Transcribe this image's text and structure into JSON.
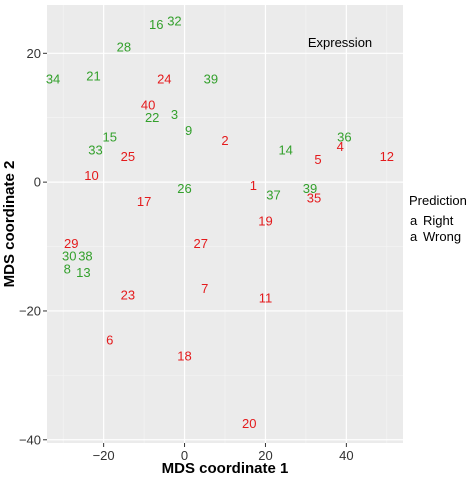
{
  "chart_data": {
    "type": "scatter",
    "title": "",
    "xlabel": "MDS coordinate 1",
    "ylabel": "MDS coordinate 2",
    "xlim": [
      -34,
      54
    ],
    "ylim": [
      -40.5,
      27.5
    ],
    "xticks": [
      -20,
      0,
      20,
      40
    ],
    "yticks": [
      -40,
      -20,
      0,
      20
    ],
    "xtick_labels": [
      "−20",
      "0",
      "20",
      "40"
    ],
    "ytick_labels": [
      "−40",
      "−20",
      "0",
      "20"
    ],
    "grid": false,
    "annotation": "Expression",
    "legend": {
      "title": "Prediction",
      "placement": "right",
      "entries": [
        {
          "key": "a",
          "label": "Right",
          "color": "#e41a1c"
        },
        {
          "key": "a",
          "label": "Wrong",
          "color": "#33a02c"
        }
      ]
    },
    "series": [
      {
        "name": "Right",
        "color": "#e41a1c",
        "points": [
          {
            "label": "24",
            "x": -5,
            "y": 16
          },
          {
            "label": "40",
            "x": -9,
            "y": 12
          },
          {
            "label": "2",
            "x": 10,
            "y": 6.5
          },
          {
            "label": "25",
            "x": -14,
            "y": 4
          },
          {
            "label": "5",
            "x": 33,
            "y": 3.5
          },
          {
            "label": "4",
            "x": 38.5,
            "y": 5.5
          },
          {
            "label": "12",
            "x": 50,
            "y": 4
          },
          {
            "label": "10",
            "x": -23,
            "y": 1
          },
          {
            "label": "1",
            "x": 17,
            "y": -0.5
          },
          {
            "label": "17",
            "x": -10,
            "y": -3
          },
          {
            "label": "35",
            "x": 32,
            "y": -2.5
          },
          {
            "label": "19",
            "x": 20,
            "y": -6
          },
          {
            "label": "29",
            "x": -28,
            "y": -9.5
          },
          {
            "label": "27",
            "x": 4,
            "y": -9.5
          },
          {
            "label": "23",
            "x": -14,
            "y": -17.5
          },
          {
            "label": "7",
            "x": 5,
            "y": -16.5
          },
          {
            "label": "11",
            "x": 20,
            "y": -18
          },
          {
            "label": "6",
            "x": -18.5,
            "y": -24.5
          },
          {
            "label": "18",
            "x": 0,
            "y": -27
          },
          {
            "label": "20",
            "x": 16,
            "y": -37.5
          }
        ]
      },
      {
        "name": "Wrong",
        "color": "#33a02c",
        "points": [
          {
            "label": "16",
            "x": -7,
            "y": 24.5
          },
          {
            "label": "32",
            "x": -2.5,
            "y": 25
          },
          {
            "label": "28",
            "x": -15,
            "y": 21
          },
          {
            "label": "34",
            "x": -32.5,
            "y": 16
          },
          {
            "label": "21",
            "x": -22.5,
            "y": 16.5
          },
          {
            "label": "39",
            "x": 6.5,
            "y": 16
          },
          {
            "label": "22",
            "x": -8,
            "y": 10
          },
          {
            "label": "3",
            "x": -2.5,
            "y": 10.5
          },
          {
            "label": "9",
            "x": 1,
            "y": 8
          },
          {
            "label": "15",
            "x": -18.5,
            "y": 7
          },
          {
            "label": "33",
            "x": -22,
            "y": 5
          },
          {
            "label": "14",
            "x": 25,
            "y": 5
          },
          {
            "label": "36",
            "x": 39.5,
            "y": 7
          },
          {
            "label": "26",
            "x": 0,
            "y": -1
          },
          {
            "label": "37",
            "x": 22,
            "y": -2
          },
          {
            "label": "39",
            "x": 31,
            "y": -1
          },
          {
            "label": "38",
            "x": -24.5,
            "y": -11.5
          },
          {
            "label": "30",
            "x": -28.5,
            "y": -11.5
          },
          {
            "label": "8",
            "x": -29,
            "y": -13.5
          },
          {
            "label": "13",
            "x": -25,
            "y": -14
          }
        ]
      }
    ]
  }
}
